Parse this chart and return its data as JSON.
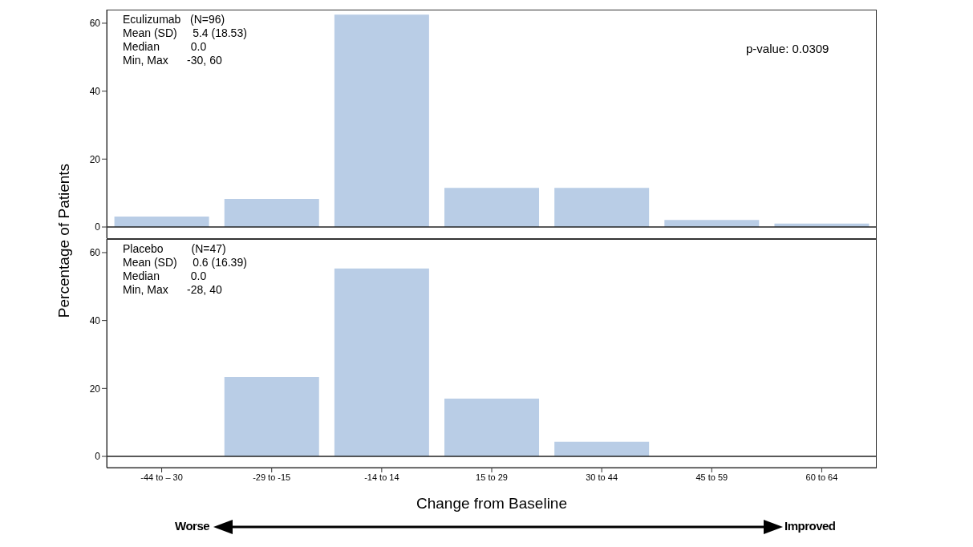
{
  "chart_data": [
    {
      "type": "bar",
      "ylabel": "Percentage of Patients",
      "categories": [
        null,
        null,
        null,
        null,
        null,
        null,
        null
      ],
      "values": [
        3.1,
        8.3,
        62.5,
        11.5,
        11.5,
        2.1,
        1.0
      ],
      "color": "#b9cde6",
      "ylim": [
        -3.3,
        64
      ],
      "yticks": [
        0,
        20,
        40,
        60
      ],
      "grid": false,
      "tick_labels": "y",
      "ref_lines": [
        {
          "axis": "y",
          "value": 0
        }
      ],
      "annotations": [
        "Eculizumab   (N=96)",
        "Mean (SD)     5.4 (18.53)",
        "Median          0.0",
        "Min, Max      -30, 60",
        "p-value: 0.0309"
      ]
    },
    {
      "type": "bar",
      "xlabel": "Change from Baseline",
      "categories": [
        "-44 to – 30",
        "-29 to -15",
        "-14 to 14",
        "15 to 29",
        "30 to 44",
        "45 to 59",
        "60 to 64"
      ],
      "values": [
        0,
        23.4,
        55.3,
        17.0,
        4.3,
        0,
        0
      ],
      "color": "#b9cde6",
      "ylim": [
        -3.3,
        64
      ],
      "yticks": [
        0,
        20,
        40,
        60
      ],
      "grid": false,
      "ref_lines": [
        {
          "axis": "y",
          "value": 0
        }
      ],
      "annotations": [
        "Placebo         (N=47)",
        "Mean (SD)     0.6 (16.39)",
        "Median          0.0",
        "Min, Max      -28, 40",
        "Worse",
        "Improved"
      ]
    }
  ]
}
